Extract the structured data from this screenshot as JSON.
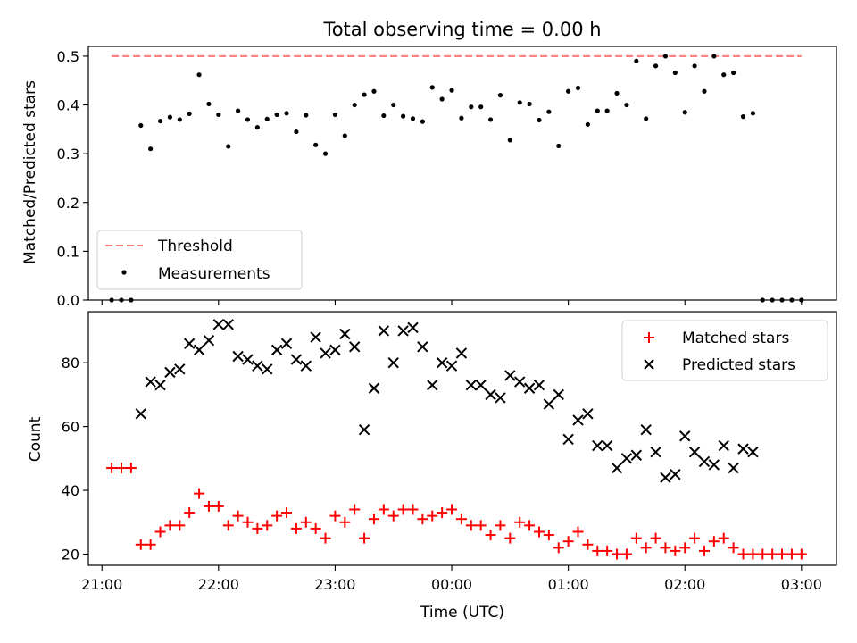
{
  "chart_data": [
    {
      "type": "scatter",
      "title": "Total observing time = 0.00 h",
      "ylabel": "Matched/Predicted stars",
      "xlim": [
        "20:53",
        "03:18"
      ],
      "ylim": [
        0,
        0.52
      ],
      "yticks": [
        "0.0",
        "0.1",
        "0.2",
        "0.3",
        "0.4",
        "0.5"
      ],
      "legend_position": "lower-left",
      "threshold": {
        "name": "Threshold",
        "value": 0.5,
        "x_range": [
          "21:05",
          "03:00"
        ],
        "color": "#ff7777",
        "style": "dashed"
      },
      "series": [
        {
          "name": "Measurements",
          "color": "#000000",
          "marker": "dot",
          "points": [
            [
              "21:05",
              0.0
            ],
            [
              "21:10",
              0.0
            ],
            [
              "21:15",
              0.0
            ],
            [
              "21:20",
              0.358
            ],
            [
              "21:25",
              0.31
            ],
            [
              "21:30",
              0.367
            ],
            [
              "21:35",
              0.375
            ],
            [
              "21:40",
              0.37
            ],
            [
              "21:45",
              0.382
            ],
            [
              "21:50",
              0.462
            ],
            [
              "21:55",
              0.402
            ],
            [
              "22:00",
              0.38
            ],
            [
              "22:05",
              0.315
            ],
            [
              "22:10",
              0.388
            ],
            [
              "22:15",
              0.37
            ],
            [
              "22:20",
              0.354
            ],
            [
              "22:25",
              0.371
            ],
            [
              "22:30",
              0.38
            ],
            [
              "22:35",
              0.383
            ],
            [
              "22:40",
              0.345
            ],
            [
              "22:45",
              0.379
            ],
            [
              "22:50",
              0.318
            ],
            [
              "22:55",
              0.3
            ],
            [
              "23:00",
              0.38
            ],
            [
              "23:05",
              0.337
            ],
            [
              "23:10",
              0.4
            ],
            [
              "23:15",
              0.421
            ],
            [
              "23:20",
              0.428
            ],
            [
              "23:25",
              0.378
            ],
            [
              "23:30",
              0.4
            ],
            [
              "23:35",
              0.377
            ],
            [
              "23:40",
              0.372
            ],
            [
              "23:45",
              0.366
            ],
            [
              "23:50",
              0.436
            ],
            [
              "23:55",
              0.412
            ],
            [
              "00:00",
              0.43
            ],
            [
              "00:05",
              0.373
            ],
            [
              "00:10",
              0.396
            ],
            [
              "00:15",
              0.396
            ],
            [
              "00:20",
              0.37
            ],
            [
              "00:25",
              0.42
            ],
            [
              "00:30",
              0.328
            ],
            [
              "00:35",
              0.405
            ],
            [
              "00:40",
              0.402
            ],
            [
              "00:45",
              0.369
            ],
            [
              "00:50",
              0.386
            ],
            [
              "00:55",
              0.316
            ],
            [
              "01:00",
              0.428
            ],
            [
              "01:05",
              0.435
            ],
            [
              "01:10",
              0.36
            ],
            [
              "01:15",
              0.388
            ],
            [
              "01:20",
              0.388
            ],
            [
              "01:25",
              0.424
            ],
            [
              "01:30",
              0.4
            ],
            [
              "01:35",
              0.49
            ],
            [
              "01:40",
              0.372
            ],
            [
              "01:45",
              0.48
            ],
            [
              "01:50",
              0.5
            ],
            [
              "01:55",
              0.466
            ],
            [
              "02:00",
              0.385
            ],
            [
              "02:05",
              0.48
            ],
            [
              "02:10",
              0.428
            ],
            [
              "02:15",
              0.5
            ],
            [
              "02:20",
              0.462
            ],
            [
              "02:25",
              0.466
            ],
            [
              "02:30",
              0.376
            ],
            [
              "02:35",
              0.383
            ],
            [
              "02:40",
              0.0
            ],
            [
              "02:45",
              0.0
            ],
            [
              "02:50",
              0.0
            ],
            [
              "02:55",
              0.0
            ],
            [
              "03:00",
              0.0
            ]
          ]
        }
      ]
    },
    {
      "type": "scatter",
      "xlabel": "Time (UTC)",
      "ylabel": "Count",
      "xlim": [
        "20:53",
        "03:18"
      ],
      "ylim": [
        16.5,
        96
      ],
      "xticks": [
        "21:00",
        "22:00",
        "23:00",
        "00:00",
        "01:00",
        "02:00",
        "03:00"
      ],
      "yticks": [
        "20",
        "40",
        "60",
        "80"
      ],
      "legend_position": "top-right",
      "series": [
        {
          "name": "Matched stars",
          "color": "#ff0000",
          "marker": "plus",
          "points": [
            [
              "21:05",
              47
            ],
            [
              "21:10",
              47
            ],
            [
              "21:15",
              47
            ],
            [
              "21:20",
              23
            ],
            [
              "21:25",
              23
            ],
            [
              "21:30",
              27
            ],
            [
              "21:35",
              29
            ],
            [
              "21:40",
              29
            ],
            [
              "21:45",
              33
            ],
            [
              "21:50",
              39
            ],
            [
              "21:55",
              35
            ],
            [
              "22:00",
              35
            ],
            [
              "22:05",
              29
            ],
            [
              "22:10",
              32
            ],
            [
              "22:15",
              30
            ],
            [
              "22:20",
              28
            ],
            [
              "22:25",
              29
            ],
            [
              "22:30",
              32
            ],
            [
              "22:35",
              33
            ],
            [
              "22:40",
              28
            ],
            [
              "22:45",
              30
            ],
            [
              "22:50",
              28
            ],
            [
              "22:55",
              25
            ],
            [
              "23:00",
              32
            ],
            [
              "23:05",
              30
            ],
            [
              "23:10",
              34
            ],
            [
              "23:15",
              25
            ],
            [
              "23:20",
              31
            ],
            [
              "23:25",
              34
            ],
            [
              "23:30",
              32
            ],
            [
              "23:35",
              34
            ],
            [
              "23:40",
              34
            ],
            [
              "23:45",
              31
            ],
            [
              "23:50",
              32
            ],
            [
              "23:55",
              33
            ],
            [
              "00:00",
              34
            ],
            [
              "00:05",
              31
            ],
            [
              "00:10",
              29
            ],
            [
              "00:15",
              29
            ],
            [
              "00:20",
              26
            ],
            [
              "00:25",
              29
            ],
            [
              "00:30",
              25
            ],
            [
              "00:35",
              30
            ],
            [
              "00:40",
              29
            ],
            [
              "00:45",
              27
            ],
            [
              "00:50",
              26
            ],
            [
              "00:55",
              22
            ],
            [
              "01:00",
              24
            ],
            [
              "01:05",
              27
            ],
            [
              "01:10",
              23
            ],
            [
              "01:15",
              21
            ],
            [
              "01:20",
              21
            ],
            [
              "01:25",
              20
            ],
            [
              "01:30",
              20
            ],
            [
              "01:35",
              25
            ],
            [
              "01:40",
              22
            ],
            [
              "01:45",
              25
            ],
            [
              "01:50",
              22
            ],
            [
              "01:55",
              21
            ],
            [
              "02:00",
              22
            ],
            [
              "02:05",
              25
            ],
            [
              "02:10",
              21
            ],
            [
              "02:15",
              24
            ],
            [
              "02:20",
              25
            ],
            [
              "02:25",
              22
            ],
            [
              "02:30",
              20
            ],
            [
              "02:35",
              20
            ],
            [
              "02:40",
              20
            ],
            [
              "02:45",
              20
            ],
            [
              "02:50",
              20
            ],
            [
              "02:55",
              20
            ],
            [
              "03:00",
              20
            ]
          ]
        },
        {
          "name": "Predicted stars",
          "color": "#000000",
          "marker": "x",
          "points": [
            [
              "21:20",
              64
            ],
            [
              "21:25",
              74
            ],
            [
              "21:30",
              73
            ],
            [
              "21:35",
              77
            ],
            [
              "21:40",
              78
            ],
            [
              "21:45",
              86
            ],
            [
              "21:50",
              84
            ],
            [
              "21:55",
              87
            ],
            [
              "22:00",
              92
            ],
            [
              "22:05",
              92
            ],
            [
              "22:10",
              82
            ],
            [
              "22:15",
              81
            ],
            [
              "22:20",
              79
            ],
            [
              "22:25",
              78
            ],
            [
              "22:30",
              84
            ],
            [
              "22:35",
              86
            ],
            [
              "22:40",
              81
            ],
            [
              "22:45",
              79
            ],
            [
              "22:50",
              88
            ],
            [
              "22:55",
              83
            ],
            [
              "23:00",
              84
            ],
            [
              "23:05",
              89
            ],
            [
              "23:10",
              85
            ],
            [
              "23:15",
              59
            ],
            [
              "23:20",
              72
            ],
            [
              "23:25",
              90
            ],
            [
              "23:30",
              80
            ],
            [
              "23:35",
              90
            ],
            [
              "23:40",
              91
            ],
            [
              "23:45",
              85
            ],
            [
              "23:50",
              73
            ],
            [
              "23:55",
              80
            ],
            [
              "00:00",
              79
            ],
            [
              "00:05",
              83
            ],
            [
              "00:10",
              73
            ],
            [
              "00:15",
              73
            ],
            [
              "00:20",
              70
            ],
            [
              "00:25",
              69
            ],
            [
              "00:30",
              76
            ],
            [
              "00:35",
              74
            ],
            [
              "00:40",
              72
            ],
            [
              "00:45",
              73
            ],
            [
              "00:50",
              67
            ],
            [
              "00:55",
              70
            ],
            [
              "01:00",
              56
            ],
            [
              "01:05",
              62
            ],
            [
              "01:10",
              64
            ],
            [
              "01:15",
              54
            ],
            [
              "01:20",
              54
            ],
            [
              "01:25",
              47
            ],
            [
              "01:30",
              50
            ],
            [
              "01:35",
              51
            ],
            [
              "01:40",
              59
            ],
            [
              "01:45",
              52
            ],
            [
              "01:50",
              44
            ],
            [
              "01:55",
              45
            ],
            [
              "02:00",
              57
            ],
            [
              "02:05",
              52
            ],
            [
              "02:10",
              49
            ],
            [
              "02:15",
              48
            ],
            [
              "02:20",
              54
            ],
            [
              "02:25",
              47
            ],
            [
              "02:30",
              53
            ],
            [
              "02:35",
              52
            ]
          ]
        }
      ]
    }
  ]
}
